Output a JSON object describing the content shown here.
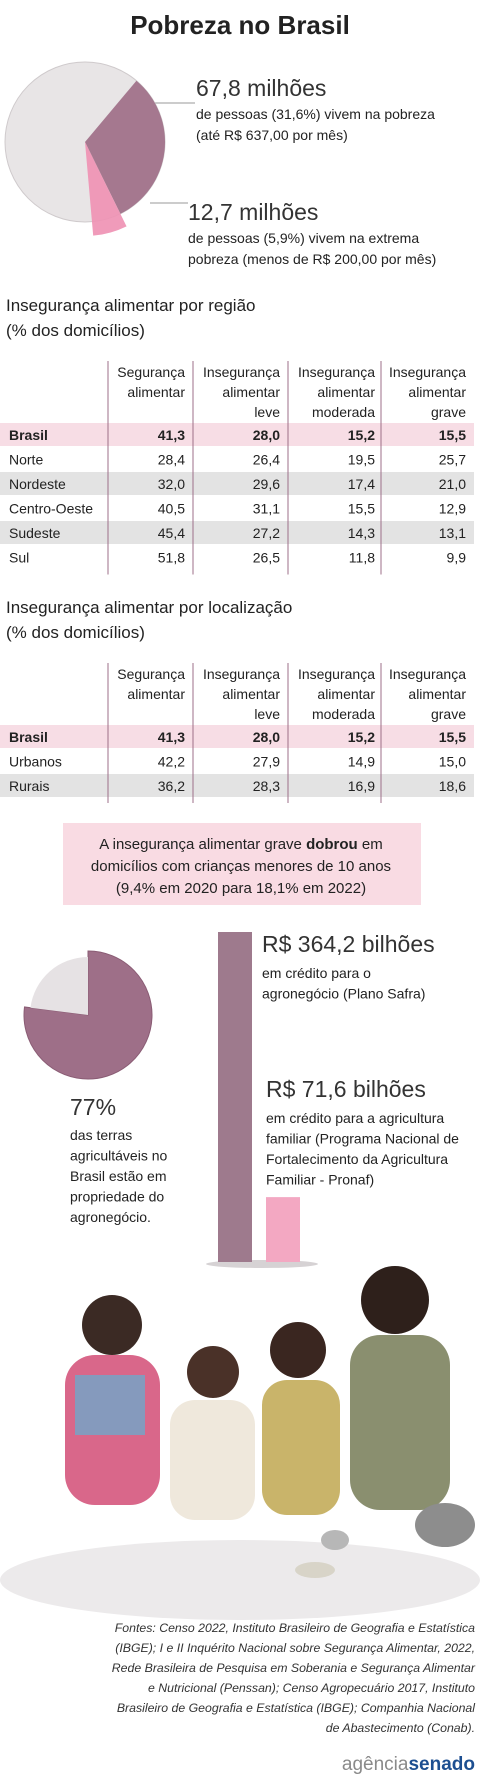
{
  "title": "Pobreza no Brasil",
  "poverty": {
    "shares": [
      31.6,
      5.9
    ],
    "colors": [
      "#9e6f88",
      "#ef92b4"
    ],
    "items": [
      {
        "figure": "67,8 milhões",
        "lines": [
          "de pessoas (31,6%) vivem na pobreza",
          "(até R$ 637,00 por mês)"
        ]
      },
      {
        "figure": "12,7 milhões",
        "lines": [
          "de pessoas (5,9%) vivem na extrema",
          "pobreza (menos de R$ 200,00 por mês)"
        ]
      }
    ]
  },
  "region_table": {
    "title": "Insegurança alimentar por região",
    "subtitle": "(% dos domicílios)",
    "columns": [
      [
        "Segurança",
        "alimentar"
      ],
      [
        "Insegurança",
        "alimentar",
        "leve"
      ],
      [
        "Insegurança",
        "alimentar",
        "moderada"
      ],
      [
        "Insegurança",
        "alimentar",
        "grave"
      ]
    ],
    "rows": [
      [
        "Brasil",
        "41,3",
        "28,0",
        "15,2",
        "15,5"
      ],
      [
        "Norte",
        "28,4",
        "26,4",
        "19,5",
        "25,7"
      ],
      [
        "Nordeste",
        "32,0",
        "29,6",
        "17,4",
        "21,0"
      ],
      [
        "Centro-Oeste",
        "40,5",
        "31,1",
        "15,5",
        "12,9"
      ],
      [
        "Sudeste",
        "45,4",
        "27,2",
        "14,3",
        "13,1"
      ],
      [
        "Sul",
        "51,8",
        "26,5",
        "11,8",
        "9,9"
      ]
    ]
  },
  "location_table": {
    "title": "Insegurança alimentar por localização",
    "subtitle": "(% dos domicílios)",
    "columns": [
      [
        "Segurança",
        "alimentar"
      ],
      [
        "Insegurança",
        "alimentar",
        "leve"
      ],
      [
        "Insegurança",
        "alimentar",
        "moderada"
      ],
      [
        "Insegurança",
        "alimentar",
        "grave"
      ]
    ],
    "rows": [
      [
        "Brasil",
        "41,3",
        "28,0",
        "15,2",
        "15,5"
      ],
      [
        "Urbanos",
        "42,2",
        "27,9",
        "14,9",
        "15,0"
      ],
      [
        "Rurais",
        "36,2",
        "28,3",
        "16,9",
        "18,6"
      ]
    ]
  },
  "notice": {
    "line1": [
      "A insegurança alimentar grave",
      "dobrou",
      "em"
    ],
    "line2": "domicílios com crianças menores de 10 anos",
    "line3": "(9,4% em 2020 para 18,1% em 2022)"
  },
  "land": {
    "share": 77,
    "figure": "77%",
    "lines": [
      "das terras",
      "agricultáveis no",
      "Brasil estão em",
      "propriedade do",
      "agronegócio."
    ],
    "colors": [
      "#9e6f88",
      "#e6e2e4"
    ]
  },
  "credit": [
    {
      "value": 364.2,
      "color": "#9e7a8d",
      "amount": "R$ 364,2 bilhões",
      "lines": [
        "em crédito para o",
        "agronegócio (Plano Safra)"
      ]
    },
    {
      "value": 71.6,
      "color": "#f3a8c2",
      "amount": "R$ 71,6 bilhões",
      "lines": [
        "em crédito para a agricultura",
        "familiar (Programa Nacional de",
        "Fortalecimento da Agricultura",
        "Familiar - Pronaf)"
      ]
    }
  ],
  "sources": [
    "Fontes: Censo 2022, Instituto Brasileiro de Geografia e Estatística",
    "(IBGE);  I e II Inquérito Nacional sobre Segurança Alimentar, 2022,",
    "Rede Brasileira de Pesquisa em Soberania e Segurança Alimentar",
    "e Nutricional (Penssan); Censo Agropecuário 2017, Instituto",
    "Brasileiro de Geografia e Estatística (IBGE);  Companhia Nacional",
    "de Abastecimento (Conab)."
  ],
  "logo": [
    "agência",
    "senado"
  ]
}
